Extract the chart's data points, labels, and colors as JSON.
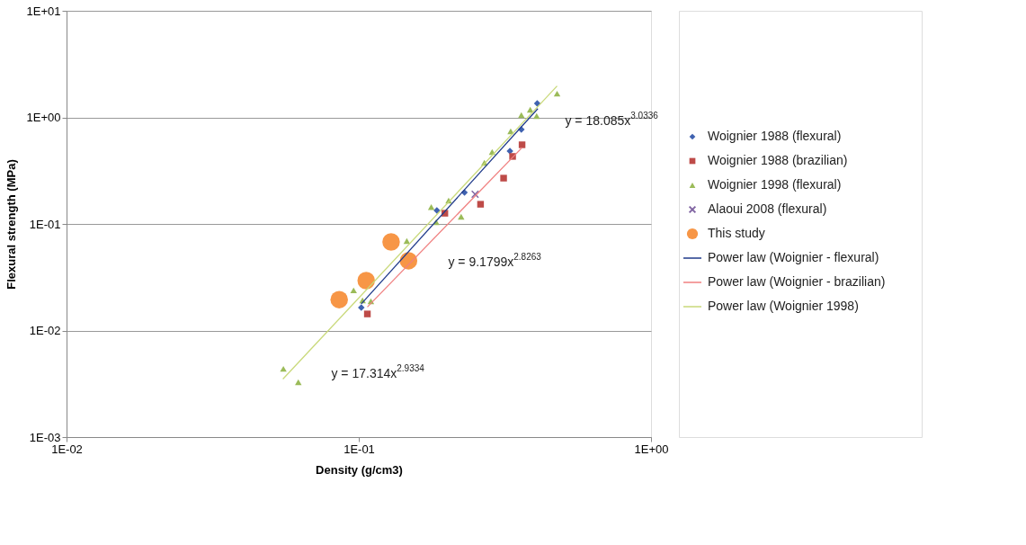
{
  "chart_data": {
    "type": "scatter",
    "xlabel": "Density (g/cm3)",
    "ylabel": "Flexural strength (MPa)",
    "log": "xy",
    "grid": "y",
    "legend": "right",
    "xlim": [
      0.01,
      1
    ],
    "xticks": [
      {
        "value": 0.01,
        "label": "1E-02"
      },
      {
        "value": 0.1,
        "label": "1E-01"
      },
      {
        "value": 1,
        "label": "1E+00"
      }
    ],
    "ylim": [
      0.001,
      10
    ],
    "yticks": [
      {
        "value": 0.001,
        "label": "1E-03"
      },
      {
        "value": 0.01,
        "label": "1E-02"
      },
      {
        "value": 0.1,
        "label": "1E-01"
      },
      {
        "value": 1,
        "label": "1E+00"
      },
      {
        "value": 10,
        "label": "1E+01"
      }
    ],
    "series": [
      {
        "name": "Woignier 1988 (flexural)",
        "marker": "diamond",
        "color": "#3f62b0",
        "x": [
          0.102,
          0.185,
          0.23,
          0.329,
          0.36,
          0.408
        ],
        "values": [
          0.0164,
          0.134,
          0.197,
          0.483,
          0.77,
          1.35
        ]
      },
      {
        "name": "Woignier 1988 (brazilian)",
        "marker": "square",
        "color": "#be4b48",
        "x": [
          0.107,
          0.197,
          0.261,
          0.313,
          0.336,
          0.362
        ],
        "values": [
          0.0143,
          0.126,
          0.153,
          0.269,
          0.43,
          0.553
        ]
      },
      {
        "name": "Woignier 1998 (flexural)",
        "marker": "triangle",
        "color": "#9bbb59",
        "x": [
          0.0552,
          0.0621,
          0.096,
          0.103,
          0.11,
          0.146,
          0.177,
          0.203,
          0.184,
          0.224,
          0.269,
          0.286,
          0.331,
          0.36,
          0.386,
          0.406,
          0.477
        ],
        "values": [
          0.00437,
          0.00327,
          0.0238,
          0.0192,
          0.0188,
          0.0692,
          0.144,
          0.166,
          0.104,
          0.117,
          0.375,
          0.473,
          0.74,
          1.05,
          1.18,
          1.03,
          1.67
        ]
      },
      {
        "name": "Alaoui 2008 (flexural)",
        "marker": "cross",
        "color": "#8064a2",
        "x": [
          0.25
        ],
        "values": [
          0.19
        ]
      },
      {
        "name": "This study",
        "type": "bubble",
        "marker": "circle",
        "color": "#f79646",
        "x": [
          0.0857,
          0.106,
          0.129,
          0.148
        ],
        "values": [
          0.0195,
          0.0294,
          0.0678,
          0.0451
        ]
      },
      {
        "name": "Power law (Woignier - flexural)",
        "type": "line",
        "marker": "none",
        "line_style": "solid",
        "color": "#1f3a8a",
        "x": [
          0.102,
          0.41
        ],
        "values": [
          0.0178,
          1.21
        ]
      },
      {
        "name": "Power law (Woignier - brazilian)",
        "type": "line",
        "marker": "none",
        "line_style": "solid",
        "color": "#f08080",
        "x": [
          0.107,
          0.362
        ],
        "values": [
          0.0166,
          0.52
        ]
      },
      {
        "name": "Power law (Woignier 1998)",
        "type": "line",
        "marker": "none",
        "line_style": "solid",
        "color": "#c9d97a",
        "x": [
          0.055,
          0.477
        ],
        "values": [
          0.0035,
          1.97
        ]
      }
    ],
    "annotations": [
      "y = 18.085x$^{3.0336}$",
      "y = 9.1799x$^{2.8263}$",
      "y = 17.314x$^{2.9334}$"
    ]
  }
}
